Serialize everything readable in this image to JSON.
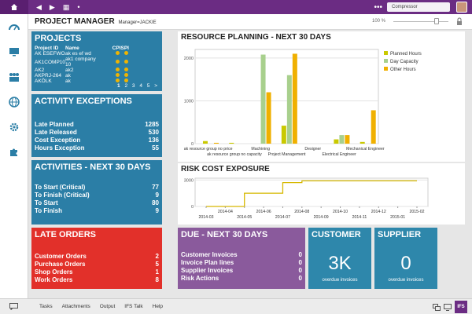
{
  "topbar": {
    "search_value": "Compressor",
    "more": "•••"
  },
  "header": {
    "title": "PROJECT MANAGER",
    "manager": "Manager=JACKIE",
    "zoom": "100 %"
  },
  "sidebar": {
    "items": [
      "dashboard-icon",
      "monitor-icon",
      "people-icon",
      "globe-icon",
      "gear-icon",
      "puzzle-icon"
    ]
  },
  "projects": {
    "title": "PROJECTS",
    "headers": [
      "Project ID",
      "Name",
      "CPI",
      "SPI"
    ],
    "rows": [
      {
        "id": "AK ESEFWO",
        "name": "ak es ef wd"
      },
      {
        "id": "AK1COMP10",
        "name": "ak1 company 10"
      },
      {
        "id": "AK2",
        "name": "ak2"
      },
      {
        "id": "AKPRJ-264",
        "name": "ak"
      },
      {
        "id": "AKÖLK",
        "name": "ak"
      }
    ],
    "pages": [
      "1",
      "2",
      "3",
      "4",
      "5",
      ">"
    ]
  },
  "activity_exceptions": {
    "title": "ACTIVITY EXCEPTIONS",
    "items": [
      {
        "label": "Late Planned",
        "value": "1285"
      },
      {
        "label": "Late Released",
        "value": "530"
      },
      {
        "label": "Cost Exception",
        "value": "136"
      },
      {
        "label": "Hours Exception",
        "value": "55"
      }
    ]
  },
  "activities": {
    "title": "ACTIVITIES - NEXT 30 DAYS",
    "items": [
      {
        "label": "To Start (Critical)",
        "value": "77"
      },
      {
        "label": "To Finish (Critical)",
        "value": "9"
      },
      {
        "label": "To Start",
        "value": "80"
      },
      {
        "label": "To Finish",
        "value": "9"
      }
    ]
  },
  "late_orders": {
    "title": "LATE ORDERS",
    "items": [
      {
        "label": "Customer Orders",
        "value": "2"
      },
      {
        "label": "Purchase Orders",
        "value": "5"
      },
      {
        "label": "Shop Orders",
        "value": "1"
      },
      {
        "label": "Work Orders",
        "value": "8"
      }
    ]
  },
  "due": {
    "title": "DUE - NEXT 30 DAYS",
    "items": [
      {
        "label": "Customer Invoices",
        "value": "0"
      },
      {
        "label": "Invoice Plan lines",
        "value": "0"
      },
      {
        "label": "Supplier Invoices",
        "value": "0"
      },
      {
        "label": "Risk Actions",
        "value": "0"
      }
    ]
  },
  "customer": {
    "title": "CUSTOMER",
    "value": "3K",
    "sub": "overdue invoices"
  },
  "supplier": {
    "title": "SUPPLIER",
    "value": "0",
    "sub": "overdue invoices"
  },
  "colors": {
    "planned": "#c9c900",
    "capacity": "#a8d08d",
    "other": "#f0b000",
    "line": "#d6b800"
  },
  "chart_data": [
    {
      "type": "bar",
      "title": "RESOURCE PLANNING - NEXT 30 DAYS",
      "categories": [
        "ak resource group no price",
        "ak resource group no capacity",
        "Machining",
        "Project Management",
        "Designer",
        "Electrical Engineer",
        "Mechanical Engineer"
      ],
      "series": [
        {
          "name": "Planned Hours",
          "values": [
            60,
            20,
            0,
            420,
            0,
            100,
            40
          ]
        },
        {
          "name": "Day Capacity",
          "values": [
            0,
            0,
            2080,
            1600,
            0,
            200,
            0
          ]
        },
        {
          "name": "Other Hours",
          "values": [
            20,
            0,
            1200,
            2100,
            0,
            200,
            780
          ]
        }
      ],
      "ylim": [
        0,
        2200
      ],
      "yticks": [
        "0",
        "1000",
        "2000"
      ],
      "legend": "top-right"
    },
    {
      "type": "line",
      "title": "RISK COST EXPOSURE",
      "x": [
        "2014-03",
        "2014-04",
        "2014-05",
        "2014-06",
        "2014-07",
        "2014-08",
        "2014-09",
        "2014-10",
        "2014-11",
        "2014-12",
        "2015-01",
        "2015-02"
      ],
      "xticks_top": [
        "2014-04",
        "2014-06",
        "2014-08",
        "2014-10",
        "2014-12",
        "2015-02"
      ],
      "xticks_bottom": [
        "2014-03",
        "2014-05",
        "2014-07",
        "2014-09",
        "2014-11",
        "2015-01"
      ],
      "values": [
        0,
        0,
        1500,
        1500,
        2700,
        2900,
        2900,
        2900,
        2900,
        2900,
        2900,
        2900
      ],
      "ylim": [
        0,
        3200
      ],
      "yticks": [
        "0",
        "3000"
      ]
    }
  ],
  "bottombar": {
    "items": [
      "Tasks",
      "Attachments",
      "Output",
      "IFS Talk",
      "Help"
    ]
  }
}
